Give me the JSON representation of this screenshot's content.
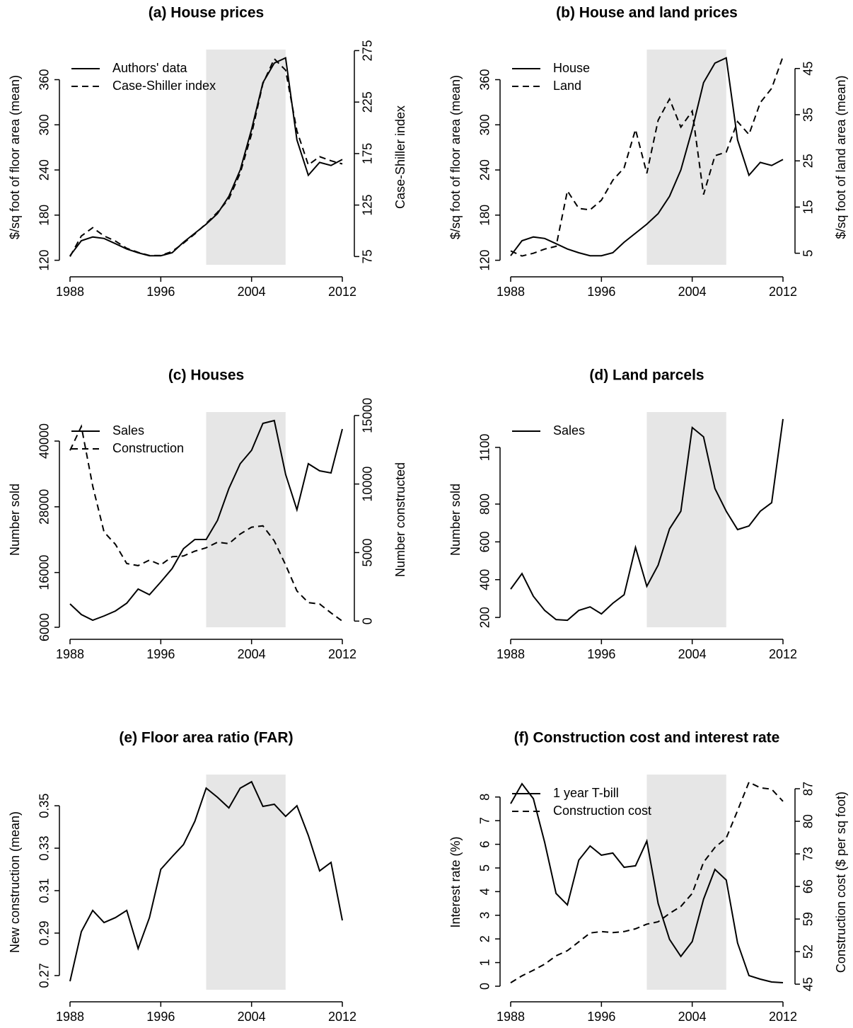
{
  "chart_data": [
    {
      "type": "line",
      "title": "(a) House prices",
      "ylabel": "$/sq foot of floor area (mean)",
      "y2label": "Case-Shiller index",
      "x": [
        1988,
        1989,
        1990,
        1991,
        1992,
        1993,
        1994,
        1995,
        1996,
        1997,
        1998,
        1999,
        2000,
        2001,
        2002,
        2003,
        2004,
        2005,
        2006,
        2007,
        2008,
        2009,
        2010,
        2011,
        2012
      ],
      "xlim": [
        1988,
        2012
      ],
      "xticks": [
        1988,
        1996,
        2004,
        2012
      ],
      "ylim": [
        114,
        400
      ],
      "yticks": [
        120,
        180,
        240,
        300,
        360
      ],
      "y2lim": [
        67,
        276
      ],
      "y2ticks": [
        75,
        125,
        175,
        225,
        275
      ],
      "highlight_x": [
        2000,
        2007
      ],
      "legend": "top-left",
      "series": [
        {
          "name": "Authors' data",
          "color": "#000000",
          "linestyle": "solid",
          "values": [
            126,
            146,
            151,
            149,
            142,
            135,
            130,
            126,
            126,
            130,
            144,
            156,
            168,
            182,
            205,
            240,
            294,
            356,
            382,
            389,
            280,
            233,
            250,
            246,
            254
          ]
        },
        {
          "name": "Case-Shiller index",
          "color": "#000000",
          "linestyle": "dashed",
          "axis": "y2",
          "values": [
            75,
            95,
            103,
            95,
            90,
            83,
            79,
            76,
            76,
            80,
            88,
            97,
            107,
            118,
            131,
            156,
            194,
            243,
            267,
            256,
            197,
            164,
            172,
            168,
            165
          ]
        }
      ]
    },
    {
      "type": "line",
      "title": "(b) House and land prices",
      "ylabel": "$/sq foot of floor area (mean)",
      "y2label": "$/sq foot of land area (mean)",
      "x": [
        1988,
        1989,
        1990,
        1991,
        1992,
        1993,
        1994,
        1995,
        1996,
        1997,
        1998,
        1999,
        2000,
        2001,
        2002,
        2003,
        2004,
        2005,
        2006,
        2007,
        2008,
        2009,
        2010,
        2011,
        2012
      ],
      "xlim": [
        1988,
        2012
      ],
      "xticks": [
        1988,
        1996,
        2004,
        2012
      ],
      "ylim": [
        114,
        400
      ],
      "yticks": [
        120,
        180,
        240,
        300,
        360
      ],
      "y2lim": [
        2.5,
        49.1
      ],
      "y2ticks": [
        5,
        15,
        25,
        35,
        45
      ],
      "highlight_x": [
        2000,
        2007
      ],
      "legend": "top-left",
      "series": [
        {
          "name": "House",
          "color": "#000000",
          "linestyle": "solid",
          "values": [
            126,
            146,
            151,
            149,
            142,
            135,
            130,
            126,
            126,
            130,
            144,
            156,
            168,
            182,
            205,
            240,
            294,
            356,
            382,
            389,
            280,
            233,
            250,
            246,
            254
          ]
        },
        {
          "name": "Land",
          "color": "#000000",
          "linestyle": "dashed",
          "axis": "y2",
          "values": [
            5.5,
            4.4,
            5,
            5.9,
            6.5,
            18.5,
            14.7,
            14.4,
            16.5,
            20.8,
            23.5,
            31.8,
            22.3,
            33.8,
            38.4,
            32.3,
            35.8,
            17.7,
            26.1,
            26.9,
            33.5,
            30.7,
            37.6,
            40.7,
            47.6
          ]
        }
      ]
    },
    {
      "type": "line",
      "title": "(c) Houses",
      "ylabel": "Number sold",
      "y2label": "Number constructed",
      "x": [
        1988,
        1989,
        1990,
        1991,
        1992,
        1993,
        1994,
        1995,
        1996,
        1997,
        1998,
        1999,
        2000,
        2001,
        2002,
        2003,
        2004,
        2005,
        2006,
        2007,
        2008,
        2009,
        2010,
        2011,
        2012
      ],
      "xlim": [
        1988,
        2012
      ],
      "xticks": [
        1988,
        1996,
        2004,
        2012
      ],
      "ylim": [
        6000,
        45300
      ],
      "yticks": [
        6000,
        16000,
        28000,
        40000
      ],
      "y2lim": [
        -450,
        15250
      ],
      "y2ticks": [
        0,
        5000,
        10000,
        15000
      ],
      "highlight_x": [
        2000,
        2007
      ],
      "legend": "top-left",
      "series": [
        {
          "name": "Sales",
          "color": "#000000",
          "linestyle": "solid",
          "values": [
            10270,
            8330,
            7290,
            8070,
            8970,
            10400,
            12980,
            11950,
            14270,
            16730,
            20350,
            22030,
            22030,
            25520,
            31340,
            35860,
            38320,
            43230,
            43750,
            33920,
            27460,
            35860,
            34570,
            34180,
            42200
          ]
        },
        {
          "name": "Construction",
          "color": "#000000",
          "linestyle": "dashed",
          "axis": "y2",
          "values": [
            12450,
            14200,
            9850,
            6500,
            5600,
            4200,
            4050,
            4450,
            4100,
            4700,
            4750,
            5100,
            5350,
            5750,
            5650,
            6350,
            6850,
            6950,
            5850,
            4100,
            2200,
            1350,
            1250,
            600,
            0
          ]
        }
      ]
    },
    {
      "type": "line",
      "title": "(d) Land parcels",
      "ylabel": "Number sold",
      "x": [
        1988,
        1989,
        1990,
        1991,
        1992,
        1993,
        1994,
        1995,
        1996,
        1997,
        1998,
        1999,
        2000,
        2001,
        2002,
        2003,
        2004,
        2005,
        2006,
        2007,
        2008,
        2009,
        2010,
        2011,
        2012
      ],
      "xlim": [
        1988,
        2012
      ],
      "xticks": [
        1988,
        1996,
        2004,
        2012
      ],
      "ylim": [
        148,
        1287
      ],
      "yticks": [
        200,
        400,
        600,
        800,
        1100
      ],
      "highlight_x": [
        2000,
        2007
      ],
      "legend": "top-left",
      "series": [
        {
          "name": "Sales",
          "color": "#000000",
          "linestyle": "solid",
          "values": [
            350,
            432,
            312,
            237,
            189,
            185,
            237,
            256,
            219,
            275,
            320,
            571,
            365,
            477,
            669,
            762,
            1205,
            1156,
            882,
            762,
            665,
            684,
            762,
            807,
            1250
          ]
        }
      ]
    },
    {
      "type": "line",
      "title": "(e) Floor area ratio (FAR)",
      "ylabel": "New construction (mean)",
      "x": [
        1988,
        1989,
        1990,
        1991,
        1992,
        1993,
        1994,
        1995,
        1996,
        1997,
        1998,
        1999,
        2000,
        2001,
        2002,
        2003,
        2004,
        2005,
        2006,
        2007,
        2008,
        2009,
        2010,
        2011,
        2012
      ],
      "xlim": [
        1988,
        2012
      ],
      "xticks": [
        1988,
        1996,
        2004,
        2012
      ],
      "ylim": [
        0.2633,
        0.3647
      ],
      "yticks": [
        0.27,
        0.29,
        0.31,
        0.33,
        0.35
      ],
      "highlight_x": [
        2000,
        2007
      ],
      "series": [
        {
          "color": "#000000",
          "linestyle": "solid",
          "values": [
            0.2673,
            0.2907,
            0.3007,
            0.295,
            0.2973,
            0.3007,
            0.2827,
            0.2973,
            0.32,
            0.326,
            0.3317,
            0.3427,
            0.3583,
            0.354,
            0.349,
            0.3583,
            0.3613,
            0.3497,
            0.3507,
            0.345,
            0.35,
            0.336,
            0.3193,
            0.3233,
            0.296
          ]
        }
      ]
    },
    {
      "type": "line",
      "title": "(f) Construction cost and interest rate",
      "ylabel": "Interest rate (%)",
      "y2label": "Construction cost ($ per sq foot)",
      "x": [
        1988,
        1989,
        1990,
        1991,
        1992,
        1993,
        1994,
        1995,
        1996,
        1997,
        1998,
        1999,
        2000,
        2001,
        2002,
        2003,
        2004,
        2005,
        2006,
        2007,
        2008,
        2009,
        2010,
        2011,
        2012
      ],
      "xlim": [
        1988,
        2012
      ],
      "xticks": [
        1988,
        1996,
        2004,
        2012
      ],
      "ylim": [
        -0.15,
        8.95
      ],
      "yticks": [
        0,
        1,
        2,
        3,
        4,
        5,
        6,
        7,
        8
      ],
      "y2lim": [
        43.8,
        90.05
      ],
      "y2ticks": [
        45,
        52,
        59,
        66,
        73,
        80,
        87
      ],
      "highlight_x": [
        2000,
        2007
      ],
      "legend": "top-left",
      "series": [
        {
          "name": "1 year T-bill",
          "color": "#000000",
          "linestyle": "solid",
          "values": [
            7.72,
            8.56,
            7.93,
            6.08,
            3.92,
            3.44,
            5.33,
            5.93,
            5.54,
            5.63,
            5.03,
            5.09,
            6.14,
            3.5,
            1.98,
            1.26,
            1.89,
            3.68,
            4.94,
            4.49,
            1.83,
            0.45,
            0.3,
            0.18,
            0.15
          ]
        },
        {
          "name": "Construction cost",
          "color": "#000000",
          "linestyle": "dashed",
          "axis": "y2",
          "values": [
            45.3,
            46.8,
            48.0,
            49.3,
            51.1,
            52.2,
            54.1,
            56.0,
            56.3,
            56.1,
            56.3,
            56.9,
            57.9,
            58.4,
            60.2,
            61.7,
            64.5,
            71.2,
            74.4,
            76.4,
            82.3,
            88.4,
            87.2,
            86.9,
            84.3
          ]
        }
      ]
    }
  ]
}
